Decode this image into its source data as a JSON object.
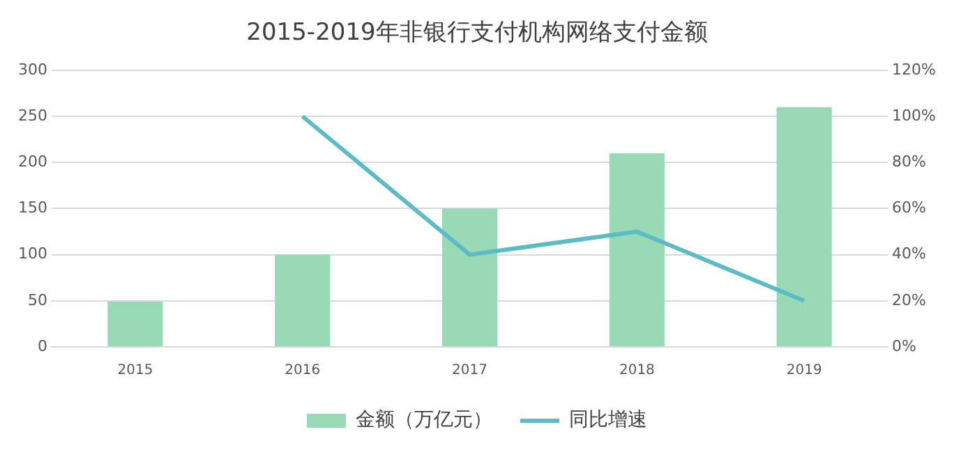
{
  "chart_data": {
    "type": "bar",
    "title": "2015-2019年非银行支付机构网络支付金额",
    "categories": [
      "2015",
      "2016",
      "2017",
      "2018",
      "2019"
    ],
    "series": [
      {
        "name": "金额（万亿元）",
        "color": "#9ad9b6",
        "values": [
          49,
          100,
          150,
          210,
          260
        ]
      },
      {
        "name": "同比增速",
        "type": "line",
        "color": "#5bbcc6",
        "axis": "y2",
        "values": [
          null,
          100,
          40,
          50,
          20
        ]
      }
    ],
    "ylim": [
      0,
      300
    ],
    "yticks": [
      0,
      50,
      100,
      150,
      200,
      250,
      300
    ],
    "y2lim": [
      0,
      120
    ],
    "y2ticks": [
      {
        "value": 0,
        "label": "0%"
      },
      {
        "value": 20,
        "label": "20%"
      },
      {
        "value": 40,
        "label": "40%"
      },
      {
        "value": 60,
        "label": "60%"
      },
      {
        "value": 80,
        "label": "80%"
      },
      {
        "value": 100,
        "label": "100%"
      },
      {
        "value": 120,
        "label": "120%"
      }
    ],
    "grid": "y",
    "legend": "bottom",
    "marker": "none",
    "line_style": "solid"
  }
}
